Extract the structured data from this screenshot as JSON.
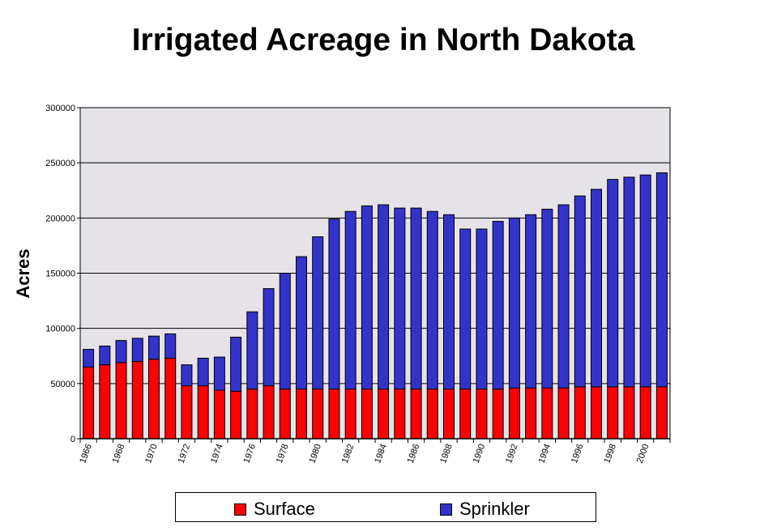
{
  "chart_data": {
    "type": "bar",
    "stacked": true,
    "title": "Irrigated Acreage in North Dakota",
    "xlabel": "",
    "ylabel": "Acres",
    "ylim": [
      0,
      300000
    ],
    "yticks": [
      "0",
      "50000",
      "100000",
      "150000",
      "200000",
      "250000",
      "300000"
    ],
    "categories": [
      "1966",
      "1967",
      "1968",
      "1969",
      "1970",
      "1971",
      "1972",
      "1973",
      "1974",
      "1975",
      "1976",
      "1977",
      "1978",
      "1979",
      "1980",
      "1981",
      "1982",
      "1983",
      "1984",
      "1985",
      "1986",
      "1987",
      "1988",
      "1989",
      "1990",
      "1991",
      "1992",
      "1993",
      "1994",
      "1995",
      "1996",
      "1997",
      "1998",
      "1999",
      "2000",
      "2001"
    ],
    "xtick_labels": [
      "1966",
      "1968",
      "1970",
      "1972",
      "1974",
      "1976",
      "1978",
      "1980",
      "1982",
      "1984",
      "1986",
      "1988",
      "1990",
      "1992",
      "1994",
      "1996",
      "1998",
      "2000"
    ],
    "series": [
      {
        "name": "Surface",
        "color": "#ff0000",
        "values": [
          65000,
          67000,
          69000,
          70000,
          72000,
          73000,
          48000,
          48000,
          44000,
          43000,
          45000,
          48000,
          45000,
          45000,
          45000,
          45000,
          45000,
          45000,
          45000,
          45000,
          45000,
          45000,
          45000,
          45000,
          45000,
          45000,
          46000,
          46000,
          46000,
          46000,
          47000,
          47000,
          47000,
          47000,
          47000,
          47000
        ]
      },
      {
        "name": "Sprinkler",
        "color": "#3333cc",
        "values": [
          16000,
          17000,
          20000,
          21000,
          21000,
          22000,
          19000,
          25000,
          30000,
          49000,
          70000,
          88000,
          105000,
          120000,
          138000,
          154000,
          161000,
          166000,
          167000,
          164000,
          164000,
          161000,
          158000,
          145000,
          145000,
          152000,
          154000,
          157000,
          162000,
          166000,
          173000,
          179000,
          188000,
          190000,
          192000,
          194000
        ]
      }
    ],
    "grid": true,
    "legend": "bottom"
  }
}
